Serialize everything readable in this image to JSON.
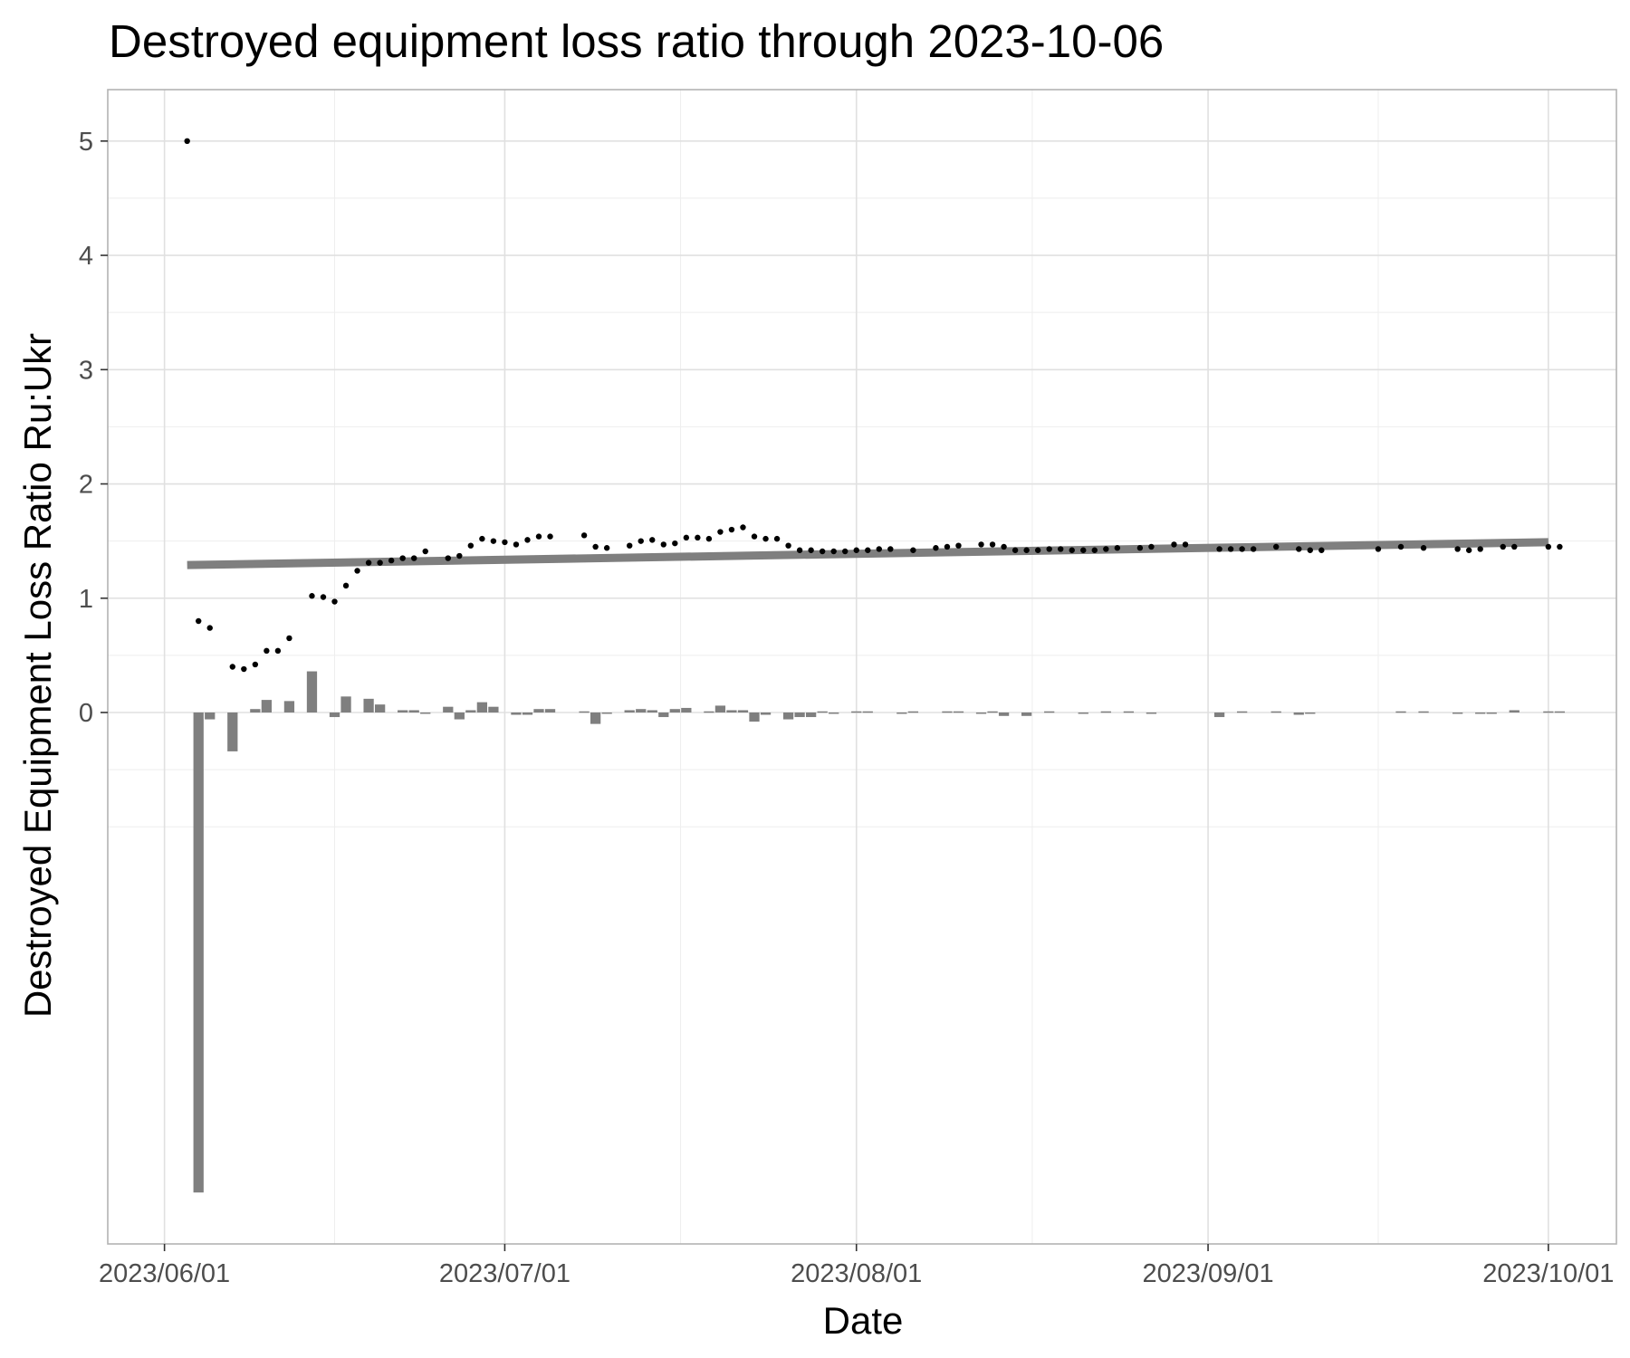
{
  "chart_data": {
    "type": "scatter",
    "title": "Destroyed equipment loss ratio through 2023-10-06",
    "xlabel": "Date",
    "ylabel": "Destroyed Equipment Loss Ratio Ru:Ukr",
    "x_tick_labels": [
      "2023/06/01",
      "2023/07/01",
      "2023/08/01",
      "2023/09/01",
      "2023/10/01"
    ],
    "x_tick_dates": [
      "2023-06-01",
      "2023-07-01",
      "2023-08-01",
      "2023-09-01",
      "2023-10-01"
    ],
    "y_tick_labels": [
      "0",
      "1",
      "2",
      "3",
      "4",
      "5"
    ],
    "xlim": [
      "2023-05-27",
      "2023-10-07"
    ],
    "ylim": [
      -4.65,
      5.45
    ],
    "grid": true,
    "legend": "none",
    "colors": {
      "points": "#000000",
      "bars": "#7f7f7f",
      "trend": "#7f7f7f"
    },
    "trend_line": {
      "x": [
        "2023-06-03",
        "2023-10-01"
      ],
      "y": [
        1.29,
        1.49
      ]
    },
    "ratio_points": {
      "x": [
        "2023-06-03",
        "2023-06-04",
        "2023-06-05",
        "2023-06-07",
        "2023-06-08",
        "2023-06-09",
        "2023-06-10",
        "2023-06-11",
        "2023-06-12",
        "2023-06-14",
        "2023-06-15",
        "2023-06-16",
        "2023-06-17",
        "2023-06-18",
        "2023-06-19",
        "2023-06-20",
        "2023-06-21",
        "2023-06-22",
        "2023-06-23",
        "2023-06-24",
        "2023-06-26",
        "2023-06-27",
        "2023-06-28",
        "2023-06-29",
        "2023-06-30",
        "2023-07-01",
        "2023-07-02",
        "2023-07-03",
        "2023-07-04",
        "2023-07-05",
        "2023-07-08",
        "2023-07-09",
        "2023-07-10",
        "2023-07-12",
        "2023-07-13",
        "2023-07-14",
        "2023-07-15",
        "2023-07-16",
        "2023-07-17",
        "2023-07-18",
        "2023-07-19",
        "2023-07-20",
        "2023-07-21",
        "2023-07-22",
        "2023-07-23",
        "2023-07-24",
        "2023-07-25",
        "2023-07-26",
        "2023-07-27",
        "2023-07-28",
        "2023-07-29",
        "2023-07-30",
        "2023-07-31",
        "2023-08-01",
        "2023-08-02",
        "2023-08-03",
        "2023-08-04",
        "2023-08-06",
        "2023-08-08",
        "2023-08-09",
        "2023-08-10",
        "2023-08-12",
        "2023-08-13",
        "2023-08-14",
        "2023-08-15",
        "2023-08-16",
        "2023-08-17",
        "2023-08-18",
        "2023-08-19",
        "2023-08-20",
        "2023-08-21",
        "2023-08-22",
        "2023-08-23",
        "2023-08-24",
        "2023-08-26",
        "2023-08-27",
        "2023-08-29",
        "2023-08-30",
        "2023-09-02",
        "2023-09-03",
        "2023-09-04",
        "2023-09-05",
        "2023-09-07",
        "2023-09-09",
        "2023-09-10",
        "2023-09-11",
        "2023-09-16",
        "2023-09-18",
        "2023-09-20",
        "2023-09-23",
        "2023-09-24",
        "2023-09-25",
        "2023-09-27",
        "2023-09-28",
        "2023-10-01",
        "2023-10-02"
      ],
      "y": [
        5.0,
        0.8,
        0.74,
        0.4,
        0.38,
        0.42,
        0.54,
        0.54,
        0.65,
        1.02,
        1.01,
        0.97,
        1.11,
        1.24,
        1.31,
        1.31,
        1.33,
        1.35,
        1.35,
        1.41,
        1.35,
        1.37,
        1.46,
        1.52,
        1.5,
        1.49,
        1.47,
        1.51,
        1.54,
        1.54,
        1.55,
        1.45,
        1.44,
        1.46,
        1.5,
        1.51,
        1.47,
        1.48,
        1.53,
        1.53,
        1.52,
        1.58,
        1.6,
        1.62,
        1.54,
        1.52,
        1.52,
        1.46,
        1.42,
        1.42,
        1.41,
        1.41,
        1.41,
        1.42,
        1.42,
        1.43,
        1.43,
        1.42,
        1.44,
        1.45,
        1.46,
        1.47,
        1.47,
        1.45,
        1.42,
        1.42,
        1.42,
        1.43,
        1.43,
        1.42,
        1.42,
        1.42,
        1.43,
        1.44,
        1.44,
        1.45,
        1.47,
        1.47,
        1.43,
        1.43,
        1.43,
        1.43,
        1.45,
        1.43,
        1.42,
        1.42,
        1.43,
        1.45,
        1.44,
        1.43,
        1.42,
        1.43,
        1.45,
        1.45,
        1.45,
        1.45
      ]
    },
    "daily_change_bars": {
      "x": [
        "2023-06-04",
        "2023-06-05",
        "2023-06-07",
        "2023-06-09",
        "2023-06-10",
        "2023-06-12",
        "2023-06-14",
        "2023-06-16",
        "2023-06-17",
        "2023-06-19",
        "2023-06-20",
        "2023-06-22",
        "2023-06-23",
        "2023-06-24",
        "2023-06-26",
        "2023-06-27",
        "2023-06-28",
        "2023-06-29",
        "2023-06-30",
        "2023-07-02",
        "2023-07-03",
        "2023-07-04",
        "2023-07-05",
        "2023-07-08",
        "2023-07-09",
        "2023-07-10",
        "2023-07-12",
        "2023-07-13",
        "2023-07-14",
        "2023-07-15",
        "2023-07-16",
        "2023-07-17",
        "2023-07-19",
        "2023-07-20",
        "2023-07-21",
        "2023-07-22",
        "2023-07-23",
        "2023-07-24",
        "2023-07-26",
        "2023-07-27",
        "2023-07-28",
        "2023-07-29",
        "2023-07-30",
        "2023-08-01",
        "2023-08-02",
        "2023-08-05",
        "2023-08-06",
        "2023-08-09",
        "2023-08-10",
        "2023-08-12",
        "2023-08-13",
        "2023-08-14",
        "2023-08-16",
        "2023-08-18",
        "2023-08-21",
        "2023-08-23",
        "2023-08-25",
        "2023-08-27",
        "2023-09-02",
        "2023-09-04",
        "2023-09-07",
        "2023-09-09",
        "2023-09-10",
        "2023-09-18",
        "2023-09-20",
        "2023-09-23",
        "2023-09-25",
        "2023-09-26",
        "2023-09-28",
        "2023-10-01",
        "2023-10-02"
      ],
      "y": [
        -4.2,
        -0.06,
        -0.34,
        0.03,
        0.11,
        0.1,
        0.36,
        -0.04,
        0.14,
        0.12,
        0.07,
        0.02,
        0.02,
        -0.01,
        0.05,
        -0.06,
        0.02,
        0.09,
        0.05,
        -0.02,
        -0.02,
        0.03,
        0.03,
        0.01,
        -0.1,
        -0.01,
        0.02,
        0.03,
        0.02,
        -0.04,
        0.03,
        0.04,
        0.01,
        0.06,
        0.02,
        0.02,
        -0.08,
        -0.02,
        -0.06,
        -0.04,
        -0.04,
        0.01,
        -0.01,
        0.01,
        0.01,
        -0.01,
        0.01,
        0.01,
        0.01,
        -0.01,
        0.01,
        -0.03,
        -0.03,
        0.01,
        -0.01,
        0.01,
        0.01,
        -0.01,
        -0.04,
        0.01,
        0.01,
        -0.02,
        -0.01,
        0.01,
        0.01,
        -0.01,
        -0.01,
        -0.01,
        0.02,
        0.01,
        0.01
      ]
    }
  }
}
